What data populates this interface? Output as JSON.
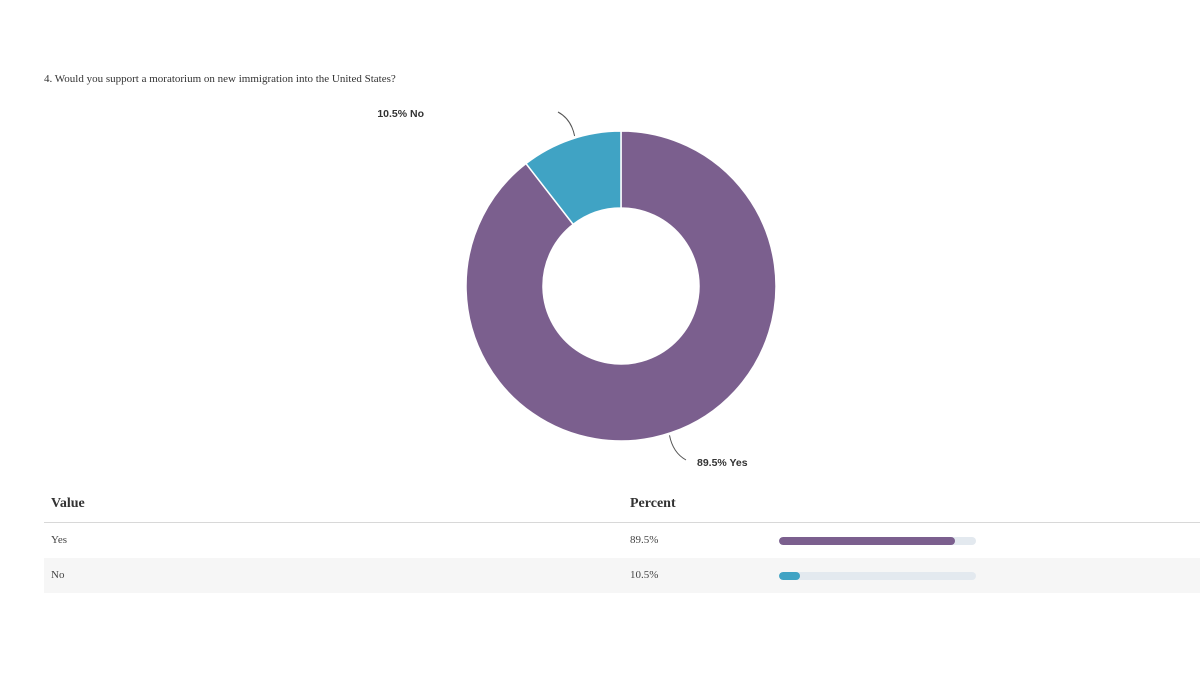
{
  "question": "4. Would you support a moratorium on new immigration into the United States?",
  "chart_data": {
    "type": "pie",
    "title": "4. Would you support a moratorium on new immigration into the United States?",
    "categories": [
      "Yes",
      "No"
    ],
    "values": [
      89.5,
      10.5
    ],
    "unit": "%",
    "colors": [
      "#7b5f8e",
      "#40a3c4"
    ],
    "slice_labels": [
      "89.5% Yes",
      "10.5% No"
    ],
    "donut": true
  },
  "table": {
    "headers": {
      "value": "Value",
      "percent": "Percent"
    },
    "rows": [
      {
        "value": "Yes",
        "percent_text": "89.5%",
        "percent": 89.5,
        "color": "#7b5f8e"
      },
      {
        "value": "No",
        "percent_text": "10.5%",
        "percent": 10.5,
        "color": "#40a3c4"
      }
    ]
  }
}
